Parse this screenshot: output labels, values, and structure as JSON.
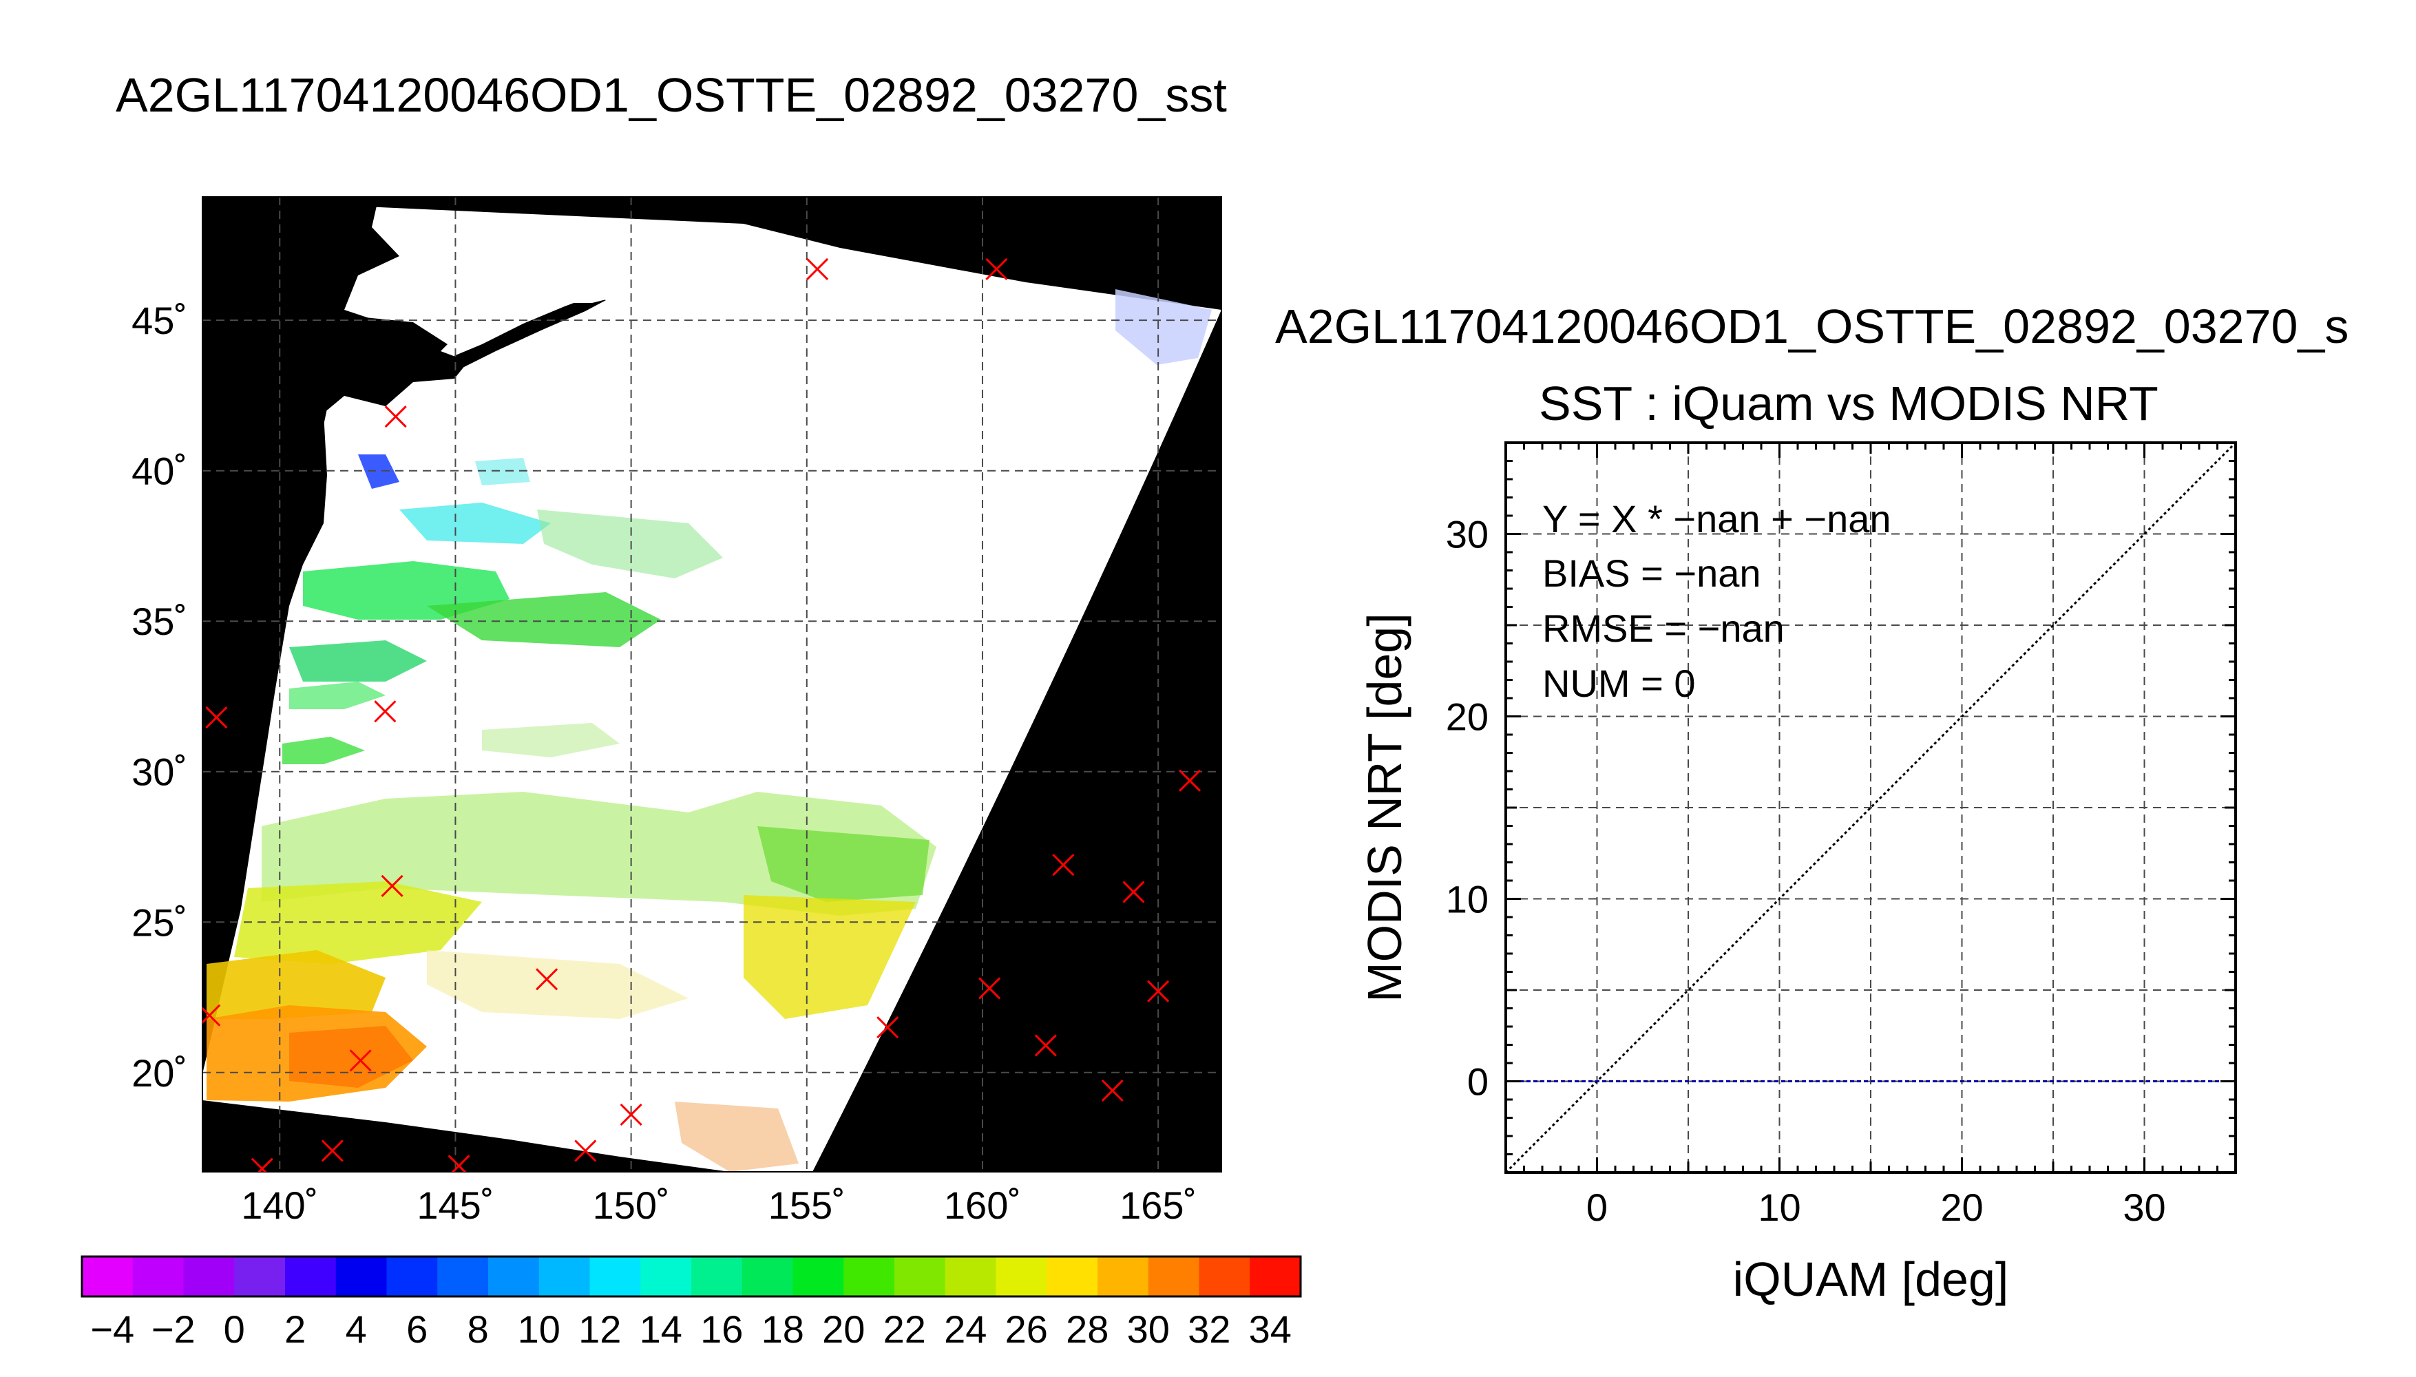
{
  "main_title": "A2GL11704120046OD1_OSTTE_02892_03270_sst",
  "map": {
    "lon_ticks": [
      140,
      145,
      150,
      155,
      160,
      165
    ],
    "lat_ticks": [
      20,
      25,
      30,
      35,
      40,
      45
    ],
    "lon_labels": [
      "140˚",
      "145˚",
      "150˚",
      "155˚",
      "160˚",
      "165˚"
    ],
    "lat_labels": [
      "20˚",
      "25˚",
      "30˚",
      "35˚",
      "40˚",
      "45˚"
    ],
    "lon_range": [
      137.8,
      166.8
    ],
    "lat_range": [
      16.7,
      49.1
    ],
    "background_color": "#000000",
    "swath_color": "#ffffff",
    "marker_color": "#ff0000",
    "markers": [
      {
        "lon": 155.3,
        "lat": 46.7
      },
      {
        "lon": 160.4,
        "lat": 46.7
      },
      {
        "lon": 143.3,
        "lat": 41.8
      },
      {
        "lon": 138.2,
        "lat": 31.8
      },
      {
        "lon": 143.0,
        "lat": 32.0
      },
      {
        "lon": 165.9,
        "lat": 29.7
      },
      {
        "lon": 162.3,
        "lat": 26.9
      },
      {
        "lon": 164.3,
        "lat": 26.0
      },
      {
        "lon": 143.2,
        "lat": 26.2
      },
      {
        "lon": 147.6,
        "lat": 23.1
      },
      {
        "lon": 160.2,
        "lat": 22.8
      },
      {
        "lon": 165.0,
        "lat": 22.7
      },
      {
        "lon": 157.3,
        "lat": 21.5
      },
      {
        "lon": 161.8,
        "lat": 20.9
      },
      {
        "lon": 138.0,
        "lat": 21.9
      },
      {
        "lon": 142.3,
        "lat": 20.4
      },
      {
        "lon": 163.7,
        "lat": 19.4
      },
      {
        "lon": 150.0,
        "lat": 18.6
      },
      {
        "lon": 141.5,
        "lat": 17.4
      },
      {
        "lon": 148.7,
        "lat": 17.4
      },
      {
        "lon": 139.5,
        "lat": 16.8
      },
      {
        "lon": 145.1,
        "lat": 16.9
      }
    ]
  },
  "colorbar": {
    "labels": [
      "−4",
      "−2",
      "0",
      "2",
      "4",
      "6",
      "8",
      "10",
      "12",
      "14",
      "16",
      "18",
      "20",
      "22",
      "24",
      "26",
      "28",
      "30",
      "32",
      "34"
    ],
    "colors": [
      "#e400ff",
      "#c000ff",
      "#a000f8",
      "#7820f0",
      "#4000ff",
      "#0000f0",
      "#0030ff",
      "#0060ff",
      "#0090ff",
      "#00b8ff",
      "#00e4ff",
      "#00f8d0",
      "#00f090",
      "#00e858",
      "#00e820",
      "#40e800",
      "#80e800",
      "#b8e800",
      "#e0f000",
      "#ffe000",
      "#ffb400",
      "#ff8000",
      "#ff4800",
      "#ff1000"
    ]
  },
  "chart_data": {
    "type": "scatter",
    "title": "SST : iQuam vs MODIS NRT",
    "supertitle": "A2GL11704120046OD1_OSTTE_02892_03270_s",
    "xlabel": "iQUAM [deg]",
    "ylabel": "MODIS NRT [deg]",
    "xlim": [
      -5,
      35
    ],
    "ylim": [
      -5,
      35
    ],
    "xticks": [
      0,
      10,
      20,
      30
    ],
    "yticks": [
      0,
      10,
      20,
      30
    ],
    "grid": true,
    "points": [],
    "annotations": [
      "Y = X * −nan + −nan",
      "BIAS = −nan",
      "RMSE = −nan",
      "NUM = 0"
    ],
    "reference_lines": [
      {
        "kind": "identity",
        "color": "#000000",
        "style": "dotted"
      },
      {
        "kind": "zero",
        "color": "#0000aa",
        "style": "dotted"
      }
    ]
  }
}
